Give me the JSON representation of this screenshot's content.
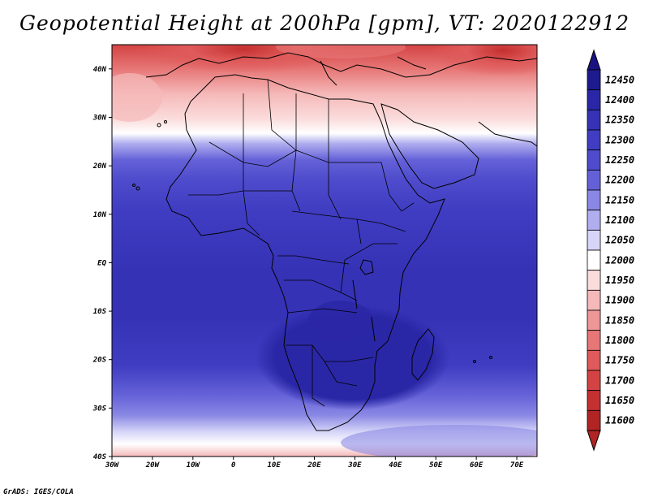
{
  "title": "Geopotential Height at 200hPa [gpm], VT: 2020122912",
  "credit": "GrADS: IGES/COLA",
  "map": {
    "lon_range": [
      -30,
      75
    ],
    "lat_range": [
      -40,
      45
    ],
    "lat_ticks": [
      {
        "value": 40,
        "label": "40N"
      },
      {
        "value": 30,
        "label": "30N"
      },
      {
        "value": 20,
        "label": "20N"
      },
      {
        "value": 10,
        "label": "10N"
      },
      {
        "value": 0,
        "label": "EQ"
      },
      {
        "value": -10,
        "label": "10S"
      },
      {
        "value": -20,
        "label": "20S"
      },
      {
        "value": -30,
        "label": "30S"
      },
      {
        "value": -40,
        "label": "40S"
      }
    ],
    "lon_ticks": [
      {
        "value": -30,
        "label": "30W"
      },
      {
        "value": -20,
        "label": "20W"
      },
      {
        "value": -10,
        "label": "10W"
      },
      {
        "value": 0,
        "label": "0"
      },
      {
        "value": 10,
        "label": "10E"
      },
      {
        "value": 20,
        "label": "20E"
      },
      {
        "value": 30,
        "label": "30E"
      },
      {
        "value": 40,
        "label": "40E"
      },
      {
        "value": 50,
        "label": "50E"
      },
      {
        "value": 60,
        "label": "60E"
      },
      {
        "value": 70,
        "label": "70E"
      }
    ]
  },
  "colorbar": {
    "levels": [
      {
        "label": "12450",
        "color": "#1d1b8e"
      },
      {
        "label": "12400",
        "color": "#2a27a6"
      },
      {
        "label": "12350",
        "color": "#3532b6"
      },
      {
        "label": "12300",
        "color": "#403dc2"
      },
      {
        "label": "12250",
        "color": "#4e4bcc"
      },
      {
        "label": "12200",
        "color": "#6461d8"
      },
      {
        "label": "12150",
        "color": "#8a88e4"
      },
      {
        "label": "12100",
        "color": "#b0aeef"
      },
      {
        "label": "12050",
        "color": "#d6d5f8"
      },
      {
        "label": "12000",
        "color": "#ffffff"
      },
      {
        "label": "11950",
        "color": "#fbdcdc"
      },
      {
        "label": "11900",
        "color": "#f5b9b9"
      },
      {
        "label": "11850",
        "color": "#ee9797"
      },
      {
        "label": "11800",
        "color": "#e77777"
      },
      {
        "label": "11750",
        "color": "#df5a5a"
      },
      {
        "label": "11700",
        "color": "#d44343"
      },
      {
        "label": "11650",
        "color": "#c53030"
      },
      {
        "label": "11600",
        "color": "#b12424"
      }
    ],
    "top_triangle_color": "#1a1280",
    "bottom_triangle_color": "#b12424"
  }
}
